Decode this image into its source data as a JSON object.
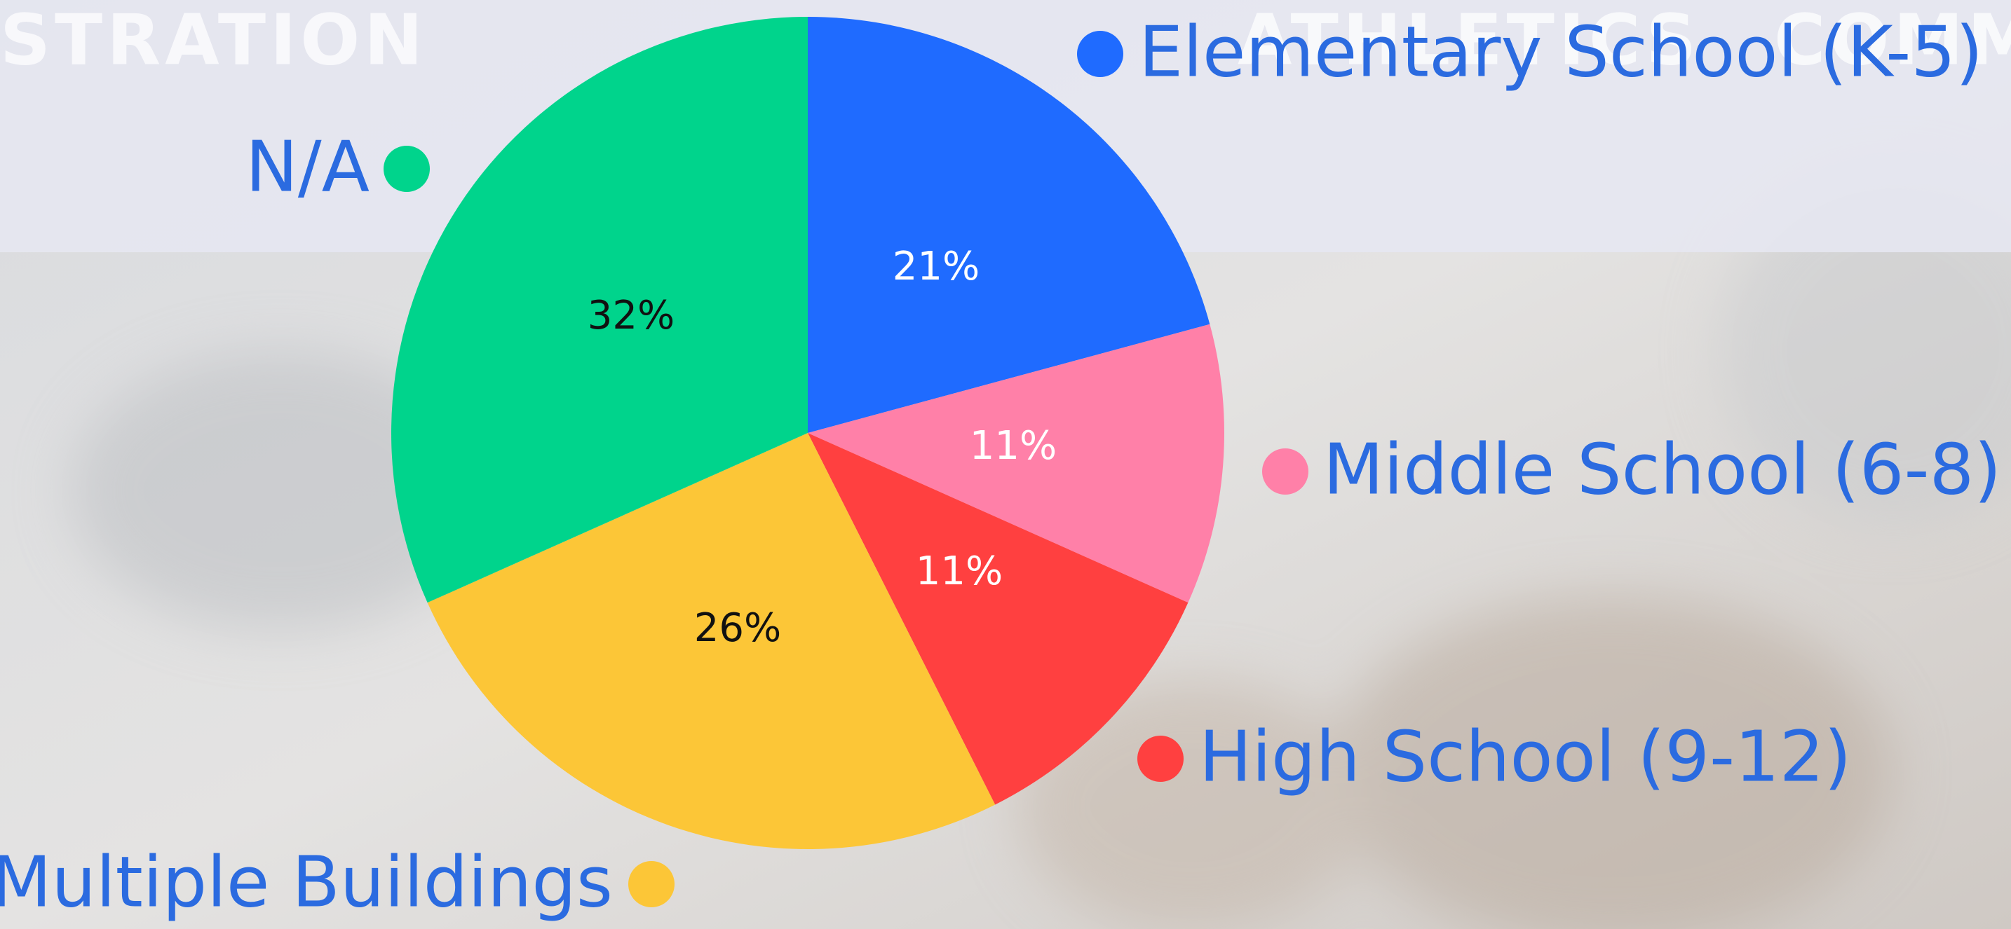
{
  "nav": [
    "STRATION",
    "ATHLETICS",
    "COMM"
  ],
  "chart_data": {
    "type": "pie",
    "categories": [
      "Elementary School (K-5)",
      "Middle School (6-8)",
      "High School (9-12)",
      "Multiple Buildings",
      "N/A"
    ],
    "values": [
      21,
      11,
      11,
      26,
      32
    ],
    "value_labels": [
      "21%",
      "11%",
      "11%",
      "26%",
      "32%"
    ],
    "colors": [
      "#1f6bff",
      "#ff80a8",
      "#ff4040",
      "#fcc637",
      "#00d48c"
    ]
  }
}
